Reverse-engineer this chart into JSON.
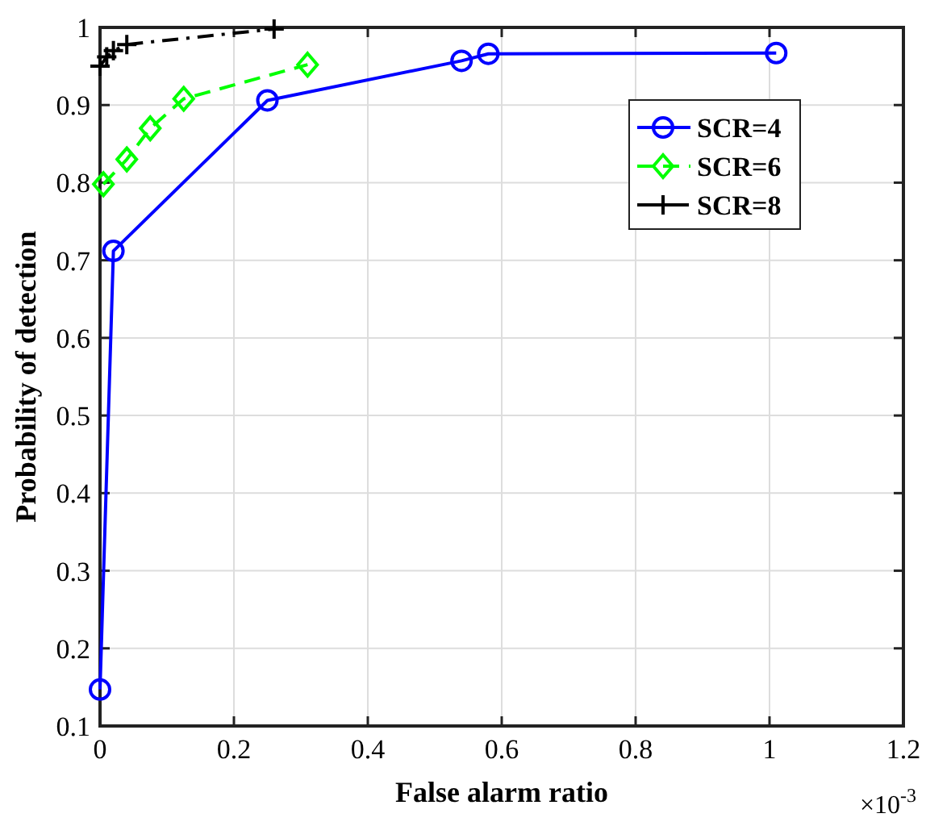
{
  "chart_data": {
    "type": "line",
    "xlabel": "False alarm ratio",
    "ylabel": "Probability of detection",
    "annotations": [
      "×10$^{-3}$"
    ],
    "xlim": [
      0,
      1.2
    ],
    "xticks": [
      0,
      0.2,
      0.4,
      0.6,
      0.8,
      1,
      1.2
    ],
    "ylim": [
      0.1,
      1
    ],
    "yticks": [
      0.1,
      0.2,
      0.3,
      0.4,
      0.5,
      0.6,
      0.7,
      0.8,
      0.9,
      1
    ],
    "grid": true,
    "legend": "top right",
    "series": [
      {
        "name": "SCR=4",
        "color": "#0000ff",
        "marker": "circle",
        "line_style": "solid",
        "x": [
          0,
          0.02,
          0.25,
          0.54,
          0.58,
          1.01
        ],
        "values": [
          0.147,
          0.712,
          0.906,
          0.957,
          0.966,
          0.967
        ]
      },
      {
        "name": "SCR=6",
        "color": "#00ff00",
        "marker": "diamond",
        "line_style": "dashed",
        "x": [
          0.005,
          0.04,
          0.075,
          0.125,
          0.31
        ],
        "values": [
          0.798,
          0.83,
          0.87,
          0.908,
          0.952
        ]
      },
      {
        "name": "SCR=8",
        "color": "#000000",
        "marker": "cross",
        "line_style": "dashdot",
        "x": [
          0,
          0.01,
          0.02,
          0.04,
          0.26
        ],
        "values": [
          0.95,
          0.962,
          0.97,
          0.978,
          0.998
        ]
      }
    ]
  }
}
